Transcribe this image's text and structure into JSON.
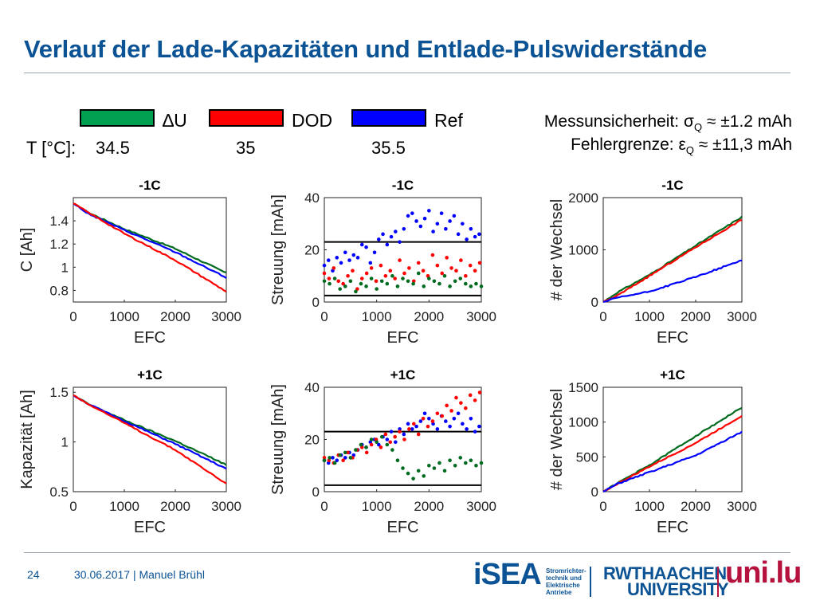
{
  "slide": {
    "title": "Verlauf der Lade-Kapazitäten und Entlade-Pulswiderstände"
  },
  "legend": {
    "items": [
      {
        "label": "∆U",
        "color": "#00a050"
      },
      {
        "label": "DOD",
        "color": "#ff0000"
      },
      {
        "label": "Ref",
        "color": "#0000ff"
      }
    ],
    "temp_label": "T [°C]:",
    "temps": [
      "34.5",
      "35",
      "35.5"
    ]
  },
  "info": {
    "line1": "Messunsicherheit: σQ ≈ ±1.2 mAh",
    "line1_pre": "Messunsicherheit: σ",
    "line1_sub": "Q",
    "line1_post": " ≈ ±1.2 mAh",
    "line2_pre": "Fehlergrenze: ε",
    "line2_sub": "Q",
    "line2_post": " ≈ ±11,3 mAh"
  },
  "colors": {
    "green": "#006b1f",
    "red": "#ff0000",
    "blue": "#0000ff",
    "accent": "#0b5394"
  },
  "chart_data": [
    {
      "type": "line",
      "title": "-1C",
      "xlabel": "EFC",
      "ylabel": "C [Ah]",
      "xlim": [
        0,
        3000
      ],
      "ylim": [
        0.7,
        1.6
      ],
      "xticks": [
        0,
        1000,
        2000,
        3000
      ],
      "yticks": [
        0.8,
        1,
        1.2,
        1.4
      ],
      "series": [
        {
          "color": "#006b1f",
          "x": [
            0,
            300,
            1000,
            2000,
            3000
          ],
          "y": [
            1.55,
            1.47,
            1.33,
            1.16,
            0.95
          ]
        },
        {
          "color": "#0000ff",
          "x": [
            0,
            300,
            1000,
            2000,
            3000
          ],
          "y": [
            1.55,
            1.46,
            1.32,
            1.13,
            0.91
          ]
        },
        {
          "color": "#ff0000",
          "x": [
            0,
            300,
            1000,
            2000,
            3000
          ],
          "y": [
            1.55,
            1.47,
            1.29,
            1.06,
            0.79
          ]
        }
      ]
    },
    {
      "type": "scatter",
      "title": "-1C",
      "xlabel": "EFC",
      "ylabel": "Streuung [mAh]",
      "xlim": [
        0,
        3000
      ],
      "ylim": [
        0,
        40
      ],
      "xticks": [
        0,
        1000,
        2000,
        3000
      ],
      "yticks": [
        0,
        20,
        40
      ],
      "hlines": [
        2.5,
        23
      ],
      "series": [
        {
          "color": "#0000ff",
          "x": [
            0,
            80,
            160,
            240,
            320,
            400,
            480,
            560,
            640,
            720,
            800,
            880,
            960,
            1040,
            1120,
            1200,
            1280,
            1360,
            1440,
            1520,
            1600,
            1680,
            1760,
            1840,
            1920,
            2000,
            2080,
            2160,
            2240,
            2320,
            2400,
            2480,
            2560,
            2640,
            2720,
            2800,
            2880,
            2960
          ],
          "y": [
            14,
            16,
            12,
            17,
            15,
            19,
            16,
            18,
            17,
            22,
            21,
            15,
            19,
            24,
            26,
            22,
            25,
            27,
            23,
            28,
            33,
            34,
            31,
            29,
            32,
            35,
            27,
            30,
            34,
            28,
            31,
            33,
            26,
            30,
            24,
            28,
            25,
            26
          ]
        },
        {
          "color": "#ff0000",
          "x": [
            0,
            90,
            180,
            270,
            360,
            450,
            540,
            630,
            720,
            810,
            900,
            990,
            1080,
            1170,
            1260,
            1350,
            1440,
            1530,
            1620,
            1710,
            1800,
            1890,
            1980,
            2070,
            2160,
            2250,
            2340,
            2430,
            2520,
            2610,
            2700,
            2790,
            2880,
            2970
          ],
          "y": [
            11,
            9,
            13,
            8,
            7,
            10,
            12,
            5,
            9,
            11,
            13,
            8,
            14,
            10,
            12,
            9,
            16,
            11,
            13,
            8,
            15,
            12,
            10,
            18,
            14,
            11,
            17,
            13,
            12,
            16,
            10,
            14,
            12,
            15
          ]
        },
        {
          "color": "#006b1f",
          "x": [
            0,
            100,
            200,
            300,
            400,
            500,
            600,
            700,
            800,
            900,
            1000,
            1100,
            1200,
            1300,
            1400,
            1500,
            1600,
            1700,
            1800,
            1900,
            2000,
            2100,
            2200,
            2300,
            2400,
            2500,
            2600,
            2700,
            2800,
            2900,
            3000
          ],
          "y": [
            8,
            7,
            9,
            5,
            6,
            8,
            4,
            7,
            6,
            9,
            5,
            8,
            7,
            10,
            6,
            9,
            8,
            7,
            11,
            6,
            9,
            8,
            7,
            10,
            6,
            8,
            9,
            7,
            6,
            7,
            6
          ]
        }
      ]
    },
    {
      "type": "line",
      "title": "-1C",
      "xlabel": "EFC",
      "ylabel": "# der Wechsel",
      "xlim": [
        0,
        3000
      ],
      "ylim": [
        0,
        2000
      ],
      "xticks": [
        0,
        1000,
        2000,
        3000
      ],
      "yticks": [
        0,
        1000,
        2000
      ],
      "series": [
        {
          "color": "#006b1f",
          "x": [
            0,
            300,
            1000,
            2000,
            3000
          ],
          "y": [
            0,
            180,
            520,
            1080,
            1630
          ]
        },
        {
          "color": "#ff0000",
          "x": [
            0,
            300,
            1000,
            2000,
            3000
          ],
          "y": [
            0,
            120,
            500,
            1050,
            1580
          ]
        },
        {
          "color": "#0000ff",
          "x": [
            0,
            300,
            1000,
            2000,
            3000
          ],
          "y": [
            0,
            80,
            200,
            480,
            800
          ]
        }
      ]
    },
    {
      "type": "line",
      "title": "+1C",
      "xlabel": "EFC",
      "ylabel": "Kapazität [Ah]",
      "xlim": [
        0,
        3000
      ],
      "ylim": [
        0.5,
        1.55
      ],
      "xticks": [
        0,
        1000,
        2000,
        3000
      ],
      "yticks": [
        0.5,
        1,
        1.5
      ],
      "series": [
        {
          "color": "#006b1f",
          "x": [
            0,
            300,
            1000,
            2000,
            3000
          ],
          "y": [
            1.47,
            1.38,
            1.22,
            1.01,
            0.77
          ]
        },
        {
          "color": "#0000ff",
          "x": [
            0,
            300,
            1000,
            2000,
            3000
          ],
          "y": [
            1.47,
            1.38,
            1.21,
            0.98,
            0.73
          ]
        },
        {
          "color": "#ff0000",
          "x": [
            0,
            300,
            1000,
            2000,
            3000
          ],
          "y": [
            1.47,
            1.38,
            1.19,
            0.92,
            0.58
          ]
        }
      ]
    },
    {
      "type": "scatter",
      "title": "+1C",
      "xlabel": "EFC",
      "ylabel": "Streuung [mAh]",
      "xlim": [
        0,
        3000
      ],
      "ylim": [
        0,
        40
      ],
      "xticks": [
        0,
        1000,
        2000,
        3000
      ],
      "yticks": [
        0,
        20,
        40
      ],
      "hlines": [
        2.5,
        23
      ],
      "series": [
        {
          "color": "#0000ff",
          "x": [
            0,
            80,
            160,
            240,
            320,
            400,
            480,
            560,
            640,
            720,
            800,
            880,
            960,
            1040,
            1120,
            1200,
            1280,
            1360,
            1440,
            1520,
            1600,
            1680,
            1760,
            1840,
            1920,
            2000,
            2080,
            2160,
            2240,
            2320,
            2400,
            2480,
            2560,
            2640,
            2720,
            2800,
            2880,
            2960
          ],
          "y": [
            12,
            11,
            13,
            12,
            14,
            13,
            15,
            14,
            16,
            18,
            17,
            19,
            20,
            18,
            21,
            20,
            23,
            19,
            24,
            22,
            26,
            24,
            25,
            27,
            30,
            28,
            26,
            24,
            29,
            27,
            25,
            28,
            30,
            26,
            24,
            28,
            23,
            25
          ]
        },
        {
          "color": "#ff0000",
          "x": [
            0,
            90,
            180,
            270,
            360,
            450,
            540,
            630,
            720,
            810,
            900,
            990,
            1080,
            1170,
            1260,
            1350,
            1440,
            1530,
            1620,
            1710,
            1800,
            1890,
            1980,
            2070,
            2160,
            2250,
            2340,
            2430,
            2520,
            2610,
            2700,
            2790,
            2880,
            2970
          ],
          "y": [
            13,
            12,
            11,
            14,
            12,
            15,
            13,
            16,
            17,
            15,
            18,
            20,
            17,
            22,
            19,
            21,
            23,
            20,
            24,
            26,
            22,
            28,
            25,
            27,
            30,
            29,
            33,
            31,
            36,
            34,
            32,
            37,
            35,
            38
          ]
        },
        {
          "color": "#006b1f",
          "x": [
            0,
            100,
            200,
            300,
            400,
            500,
            600,
            700,
            800,
            900,
            1000,
            1100,
            1200,
            1300,
            1400,
            1500,
            1600,
            1700,
            1800,
            1900,
            2000,
            2100,
            2200,
            2300,
            2400,
            2500,
            2600,
            2700,
            2800,
            2900,
            3000
          ],
          "y": [
            12,
            13,
            11,
            14,
            15,
            13,
            16,
            18,
            17,
            20,
            19,
            21,
            18,
            16,
            12,
            9,
            7,
            5,
            8,
            6,
            10,
            9,
            11,
            8,
            12,
            10,
            13,
            11,
            12,
            10,
            11
          ]
        }
      ]
    },
    {
      "type": "line",
      "title": "+1C",
      "xlabel": "EFC",
      "ylabel": "# der Wechsel",
      "xlim": [
        0,
        3000
      ],
      "ylim": [
        0,
        1500
      ],
      "xticks": [
        0,
        1000,
        2000,
        3000
      ],
      "yticks": [
        0,
        500,
        1000,
        1500
      ],
      "series": [
        {
          "color": "#006b1f",
          "x": [
            0,
            300,
            1000,
            2000,
            3000
          ],
          "y": [
            0,
            120,
            380,
            800,
            1210
          ]
        },
        {
          "color": "#ff0000",
          "x": [
            0,
            300,
            1000,
            2000,
            3000
          ],
          "y": [
            0,
            110,
            360,
            700,
            1090
          ]
        },
        {
          "color": "#0000ff",
          "x": [
            0,
            300,
            1000,
            2000,
            3000
          ],
          "y": [
            0,
            110,
            280,
            520,
            860
          ]
        }
      ]
    }
  ],
  "footer": {
    "page": "24",
    "date_author": "30.06.2017 | Manuel Brühl",
    "logo_isea": "iSEA",
    "logo_isea_sub": "Stromrichter-technik und Elektrische Antriebe",
    "logo_rwth1": "RWTHAACHEN",
    "logo_rwth2": "UNIVERSITY",
    "logo_unilu": "uni.lu"
  }
}
